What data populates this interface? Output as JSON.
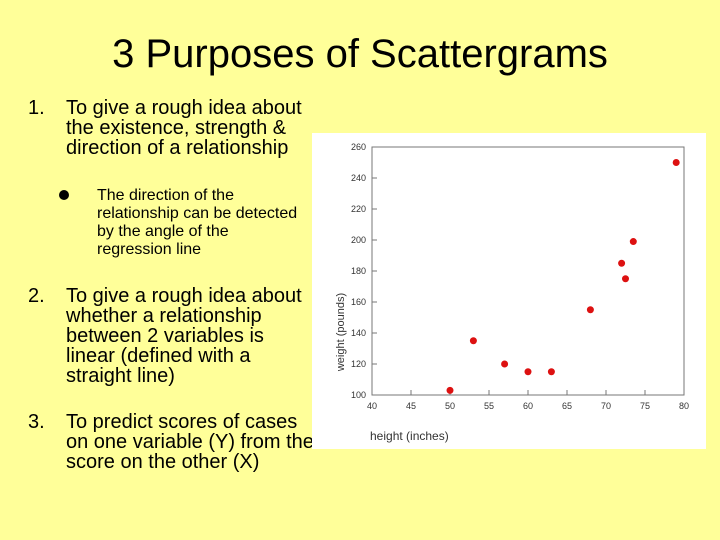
{
  "slide": {
    "title": "3 Purposes of Scattergrams",
    "items": [
      {
        "number": "1.",
        "text": "To give a rough idea about the existence, strength & direction of a relationship"
      },
      {
        "number": "2.",
        "text": "To give a rough idea about whether a relationship between 2 variables is linear (defined with a straight line)"
      },
      {
        "number": "3.",
        "text": "To predict scores of cases on one variable (Y) from the score on the other (X)"
      }
    ],
    "subitem": "The direction of the relationship can be detected by the angle of the regression line"
  },
  "colors": {
    "background": "#ffff99",
    "chart_background": "#ffffff",
    "point": "#dd1111"
  },
  "chart_data": {
    "type": "scatter",
    "title": "",
    "xlabel": "height (inches)",
    "ylabel": "weight (pounds)",
    "xlim": [
      40,
      80
    ],
    "ylim": [
      100,
      260
    ],
    "xticks": [
      40,
      45,
      50,
      55,
      60,
      65,
      70,
      75,
      80
    ],
    "yticks": [
      100,
      120,
      140,
      160,
      180,
      200,
      220,
      240,
      260
    ],
    "grid": false,
    "points": [
      {
        "x": 50,
        "y": 103
      },
      {
        "x": 53,
        "y": 135
      },
      {
        "x": 57,
        "y": 120
      },
      {
        "x": 60,
        "y": 115
      },
      {
        "x": 63,
        "y": 115
      },
      {
        "x": 68,
        "y": 155
      },
      {
        "x": 72,
        "y": 185
      },
      {
        "x": 72.5,
        "y": 175
      },
      {
        "x": 73.5,
        "y": 199
      },
      {
        "x": 79,
        "y": 250
      }
    ]
  }
}
